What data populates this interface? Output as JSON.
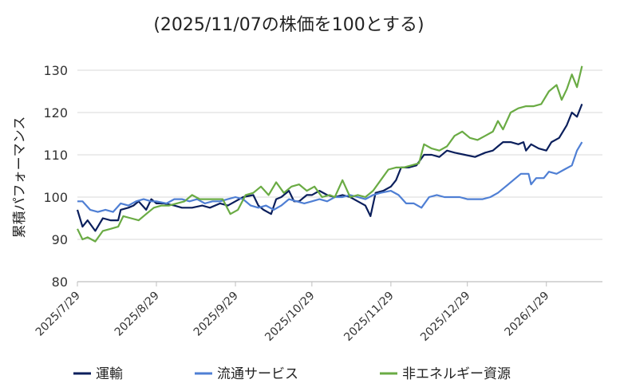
{
  "chart_data": {
    "type": "line",
    "title": "(2025/11/07の株価を100とする)",
    "ylabel": "累積パフォーマンス",
    "xlabel": "",
    "ylim": [
      80,
      130
    ],
    "yticks": [
      80,
      90,
      100,
      110,
      120,
      130
    ],
    "xlim": [
      "2025-07-29",
      "2026-02-20"
    ],
    "xticks": [
      {
        "date": "2025-07-29",
        "label": "2025/7/29"
      },
      {
        "date": "2025-08-29",
        "label": "2025/8/29"
      },
      {
        "date": "2025-09-29",
        "label": "2025/9/29"
      },
      {
        "date": "2025-10-29",
        "label": "2025/10/29"
      },
      {
        "date": "2025-11-29",
        "label": "2025/11/29"
      },
      {
        "date": "2025-12-29",
        "label": "2025/12/29"
      },
      {
        "date": "2026-01-29",
        "label": "2026/1/29"
      }
    ],
    "grid": true,
    "legend_position": "bottom",
    "series": [
      {
        "name": "運輸",
        "color": "#0b1f5c",
        "points": [
          [
            "2025-07-29",
            97
          ],
          [
            "2025-07-31",
            93
          ],
          [
            "2025-08-02",
            94.5
          ],
          [
            "2025-08-05",
            92
          ],
          [
            "2025-08-08",
            95
          ],
          [
            "2025-08-11",
            94.5
          ],
          [
            "2025-08-14",
            94.5
          ],
          [
            "2025-08-15",
            97
          ],
          [
            "2025-08-18",
            97.5
          ],
          [
            "2025-08-20",
            98
          ],
          [
            "2025-08-22",
            99
          ],
          [
            "2025-08-25",
            97
          ],
          [
            "2025-08-27",
            99.5
          ],
          [
            "2025-08-29",
            98.5
          ],
          [
            "2025-09-01",
            98.5
          ],
          [
            "2025-09-05",
            98
          ],
          [
            "2025-09-08",
            97.5
          ],
          [
            "2025-09-12",
            97.5
          ],
          [
            "2025-09-16",
            98
          ],
          [
            "2025-09-19",
            97.5
          ],
          [
            "2025-09-23",
            98.5
          ],
          [
            "2025-09-26",
            98
          ],
          [
            "2025-09-29",
            99
          ],
          [
            "2025-10-02",
            100
          ],
          [
            "2025-10-06",
            100.5
          ],
          [
            "2025-10-08",
            98
          ],
          [
            "2025-10-10",
            97
          ],
          [
            "2025-10-13",
            96
          ],
          [
            "2025-10-15",
            99.5
          ],
          [
            "2025-10-17",
            100
          ],
          [
            "2025-10-20",
            101.5
          ],
          [
            "2025-10-22",
            99
          ],
          [
            "2025-10-24",
            99
          ],
          [
            "2025-10-27",
            100.5
          ],
          [
            "2025-10-29",
            100.5
          ],
          [
            "2025-11-01",
            101.5
          ],
          [
            "2025-11-04",
            100.5
          ],
          [
            "2025-11-07",
            100
          ],
          [
            "2025-11-10",
            100.5
          ],
          [
            "2025-11-13",
            100
          ],
          [
            "2025-11-16",
            99
          ],
          [
            "2025-11-19",
            98
          ],
          [
            "2025-11-21",
            95.5
          ],
          [
            "2025-11-23",
            101
          ],
          [
            "2025-11-26",
            101.5
          ],
          [
            "2025-11-29",
            102.5
          ],
          [
            "2025-12-01",
            104
          ],
          [
            "2025-12-03",
            107
          ],
          [
            "2025-12-06",
            107
          ],
          [
            "2025-12-09",
            107.5
          ],
          [
            "2025-12-12",
            110
          ],
          [
            "2025-12-15",
            110
          ],
          [
            "2025-12-18",
            109.5
          ],
          [
            "2025-12-21",
            111
          ],
          [
            "2025-12-24",
            110.5
          ],
          [
            "2025-12-28",
            110
          ],
          [
            "2026-01-01",
            109.5
          ],
          [
            "2026-01-05",
            110.5
          ],
          [
            "2026-01-08",
            111
          ],
          [
            "2026-01-10",
            112
          ],
          [
            "2026-01-12",
            113
          ],
          [
            "2026-01-15",
            113
          ],
          [
            "2026-01-18",
            112.5
          ],
          [
            "2026-01-20",
            113
          ],
          [
            "2026-01-21",
            111
          ],
          [
            "2026-01-23",
            112.5
          ],
          [
            "2026-01-26",
            111.5
          ],
          [
            "2026-01-29",
            111
          ],
          [
            "2026-01-31",
            113
          ],
          [
            "2026-02-03",
            114
          ],
          [
            "2026-02-06",
            117
          ],
          [
            "2026-02-08",
            120
          ],
          [
            "2026-02-10",
            119
          ],
          [
            "2026-02-12",
            122
          ]
        ]
      },
      {
        "name": "流通サービス",
        "color": "#4f7fd4",
        "points": [
          [
            "2025-07-29",
            99
          ],
          [
            "2025-07-31",
            99
          ],
          [
            "2025-08-03",
            97
          ],
          [
            "2025-08-06",
            96.5
          ],
          [
            "2025-08-09",
            97
          ],
          [
            "2025-08-12",
            96.5
          ],
          [
            "2025-08-15",
            98.5
          ],
          [
            "2025-08-18",
            98
          ],
          [
            "2025-08-21",
            99
          ],
          [
            "2025-08-24",
            99.5
          ],
          [
            "2025-08-27",
            99
          ],
          [
            "2025-08-29",
            99
          ],
          [
            "2025-09-02",
            98.5
          ],
          [
            "2025-09-05",
            99.5
          ],
          [
            "2025-09-08",
            99.5
          ],
          [
            "2025-09-11",
            99
          ],
          [
            "2025-09-14",
            99.5
          ],
          [
            "2025-09-17",
            98.5
          ],
          [
            "2025-09-20",
            99
          ],
          [
            "2025-09-23",
            99
          ],
          [
            "2025-09-26",
            99.5
          ],
          [
            "2025-09-29",
            100
          ],
          [
            "2025-10-02",
            99.5
          ],
          [
            "2025-10-05",
            98
          ],
          [
            "2025-10-08",
            97.5
          ],
          [
            "2025-10-11",
            98
          ],
          [
            "2025-10-14",
            97
          ],
          [
            "2025-10-17",
            98
          ],
          [
            "2025-10-20",
            99.5
          ],
          [
            "2025-10-23",
            99
          ],
          [
            "2025-10-26",
            98.5
          ],
          [
            "2025-10-29",
            99
          ],
          [
            "2025-11-01",
            99.5
          ],
          [
            "2025-11-04",
            99
          ],
          [
            "2025-11-07",
            100
          ],
          [
            "2025-11-10",
            100
          ],
          [
            "2025-11-13",
            100.5
          ],
          [
            "2025-11-16",
            100
          ],
          [
            "2025-11-19",
            99.5
          ],
          [
            "2025-11-22",
            100.5
          ],
          [
            "2025-11-25",
            101
          ],
          [
            "2025-11-29",
            101.5
          ],
          [
            "2025-12-02",
            100.5
          ],
          [
            "2025-12-05",
            98.5
          ],
          [
            "2025-12-08",
            98.5
          ],
          [
            "2025-12-11",
            97.5
          ],
          [
            "2025-12-14",
            100
          ],
          [
            "2025-12-17",
            100.5
          ],
          [
            "2025-12-20",
            100
          ],
          [
            "2025-12-23",
            100
          ],
          [
            "2025-12-26",
            100
          ],
          [
            "2025-12-29",
            99.5
          ],
          [
            "2026-01-01",
            99.5
          ],
          [
            "2026-01-04",
            99.5
          ],
          [
            "2026-01-07",
            100
          ],
          [
            "2026-01-10",
            101
          ],
          [
            "2026-01-13",
            102.5
          ],
          [
            "2026-01-16",
            104
          ],
          [
            "2026-01-19",
            105.5
          ],
          [
            "2026-01-22",
            105.5
          ],
          [
            "2026-01-23",
            103
          ],
          [
            "2026-01-25",
            104.5
          ],
          [
            "2026-01-28",
            104.5
          ],
          [
            "2026-01-30",
            106
          ],
          [
            "2026-02-02",
            105.5
          ],
          [
            "2026-02-05",
            106.5
          ],
          [
            "2026-02-08",
            107.5
          ],
          [
            "2026-02-10",
            111
          ],
          [
            "2026-02-12",
            113
          ]
        ]
      },
      {
        "name": "非エネルギー資源",
        "color": "#6aab44",
        "points": [
          [
            "2025-07-29",
            92.5
          ],
          [
            "2025-07-31",
            90
          ],
          [
            "2025-08-02",
            90.5
          ],
          [
            "2025-08-05",
            89.5
          ],
          [
            "2025-08-08",
            92
          ],
          [
            "2025-08-11",
            92.5
          ],
          [
            "2025-08-14",
            93
          ],
          [
            "2025-08-16",
            95.5
          ],
          [
            "2025-08-19",
            95
          ],
          [
            "2025-08-22",
            94.5
          ],
          [
            "2025-08-25",
            96
          ],
          [
            "2025-08-28",
            97.5
          ],
          [
            "2025-08-31",
            98
          ],
          [
            "2025-09-03",
            98
          ],
          [
            "2025-09-06",
            98.5
          ],
          [
            "2025-09-09",
            99
          ],
          [
            "2025-09-12",
            100.5
          ],
          [
            "2025-09-15",
            99.5
          ],
          [
            "2025-09-18",
            99.5
          ],
          [
            "2025-09-21",
            99.5
          ],
          [
            "2025-09-24",
            99.5
          ],
          [
            "2025-09-27",
            96
          ],
          [
            "2025-09-30",
            97
          ],
          [
            "2025-10-03",
            100.5
          ],
          [
            "2025-10-06",
            101
          ],
          [
            "2025-10-09",
            102.5
          ],
          [
            "2025-10-12",
            100.5
          ],
          [
            "2025-10-15",
            103.5
          ],
          [
            "2025-10-18",
            101
          ],
          [
            "2025-10-21",
            102.5
          ],
          [
            "2025-10-24",
            103
          ],
          [
            "2025-10-27",
            101.5
          ],
          [
            "2025-10-30",
            102.5
          ],
          [
            "2025-11-02",
            100
          ],
          [
            "2025-11-05",
            100.5
          ],
          [
            "2025-11-07",
            100
          ],
          [
            "2025-11-10",
            104
          ],
          [
            "2025-11-13",
            100
          ],
          [
            "2025-11-16",
            100.5
          ],
          [
            "2025-11-19",
            100
          ],
          [
            "2025-11-22",
            101.5
          ],
          [
            "2025-11-25",
            104
          ],
          [
            "2025-11-28",
            106.5
          ],
          [
            "2025-12-01",
            107
          ],
          [
            "2025-12-04",
            107
          ],
          [
            "2025-12-07",
            107.5
          ],
          [
            "2025-12-10",
            108
          ],
          [
            "2025-12-12",
            112.5
          ],
          [
            "2025-12-15",
            111.5
          ],
          [
            "2025-12-18",
            111
          ],
          [
            "2025-12-21",
            112
          ],
          [
            "2025-12-24",
            114.5
          ],
          [
            "2025-12-27",
            115.5
          ],
          [
            "2025-12-30",
            114
          ],
          [
            "2026-01-02",
            113.5
          ],
          [
            "2026-01-05",
            114.5
          ],
          [
            "2026-01-08",
            115.5
          ],
          [
            "2026-01-10",
            118
          ],
          [
            "2026-01-12",
            116
          ],
          [
            "2026-01-15",
            120
          ],
          [
            "2026-01-18",
            121
          ],
          [
            "2026-01-21",
            121.5
          ],
          [
            "2026-01-24",
            121.5
          ],
          [
            "2026-01-27",
            122
          ],
          [
            "2026-01-30",
            125
          ],
          [
            "2026-02-02",
            126.5
          ],
          [
            "2026-02-04",
            123
          ],
          [
            "2026-02-06",
            125.5
          ],
          [
            "2026-02-08",
            129
          ],
          [
            "2026-02-10",
            126
          ],
          [
            "2026-02-12",
            131
          ]
        ]
      }
    ]
  }
}
